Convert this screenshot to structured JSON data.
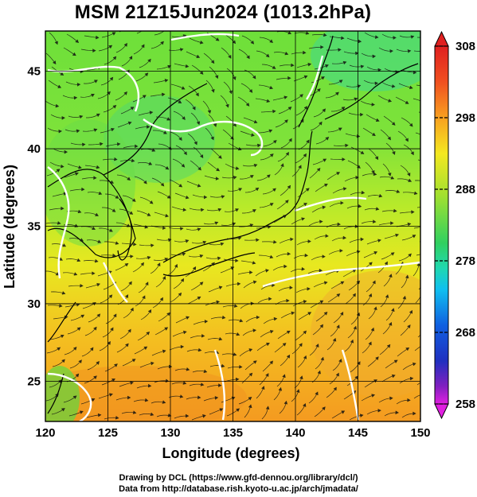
{
  "title": "MSM 21Z15Jun2024 (1013.2hPa)",
  "axes": {
    "xlabel": "Longitude (degrees)",
    "ylabel": "Latitude  (degrees)",
    "xticks": [
      "120",
      "125",
      "130",
      "135",
      "140",
      "145",
      "150"
    ],
    "yticks": [
      "25",
      "30",
      "35",
      "40",
      "45"
    ],
    "xlim": [
      120,
      150
    ],
    "ylim": [
      22.4,
      47.6
    ],
    "grid": true
  },
  "colorbar": {
    "ticks": [
      "308",
      "298",
      "288",
      "278",
      "268",
      "258"
    ],
    "range": [
      258,
      308
    ],
    "colors": [
      "#e020e0",
      "#7020c0",
      "#1030d0",
      "#1070e0",
      "#10b0f0",
      "#20e0c0",
      "#30d060",
      "#70e030",
      "#c0ee20",
      "#f4f020",
      "#f8c020",
      "#f89020",
      "#f05020",
      "#e02020"
    ]
  },
  "chart_data": {
    "type": "heatmap",
    "title": "MSM 21Z15Jun2024 (1013.2hPa)",
    "xlabel": "Longitude (degrees)",
    "ylabel": "Latitude  (degrees)",
    "xlim": [
      120,
      150
    ],
    "ylim": [
      22.4,
      47.6
    ],
    "colorbar_range": [
      258,
      308
    ],
    "grid": true
  },
  "credits": {
    "line1": "Drawing by DCL (https://www.gfd-dennou.org/library/dcl/)",
    "line2": "Data from http://database.rish.kyoto-u.ac.jp/arch/jmadata/"
  }
}
